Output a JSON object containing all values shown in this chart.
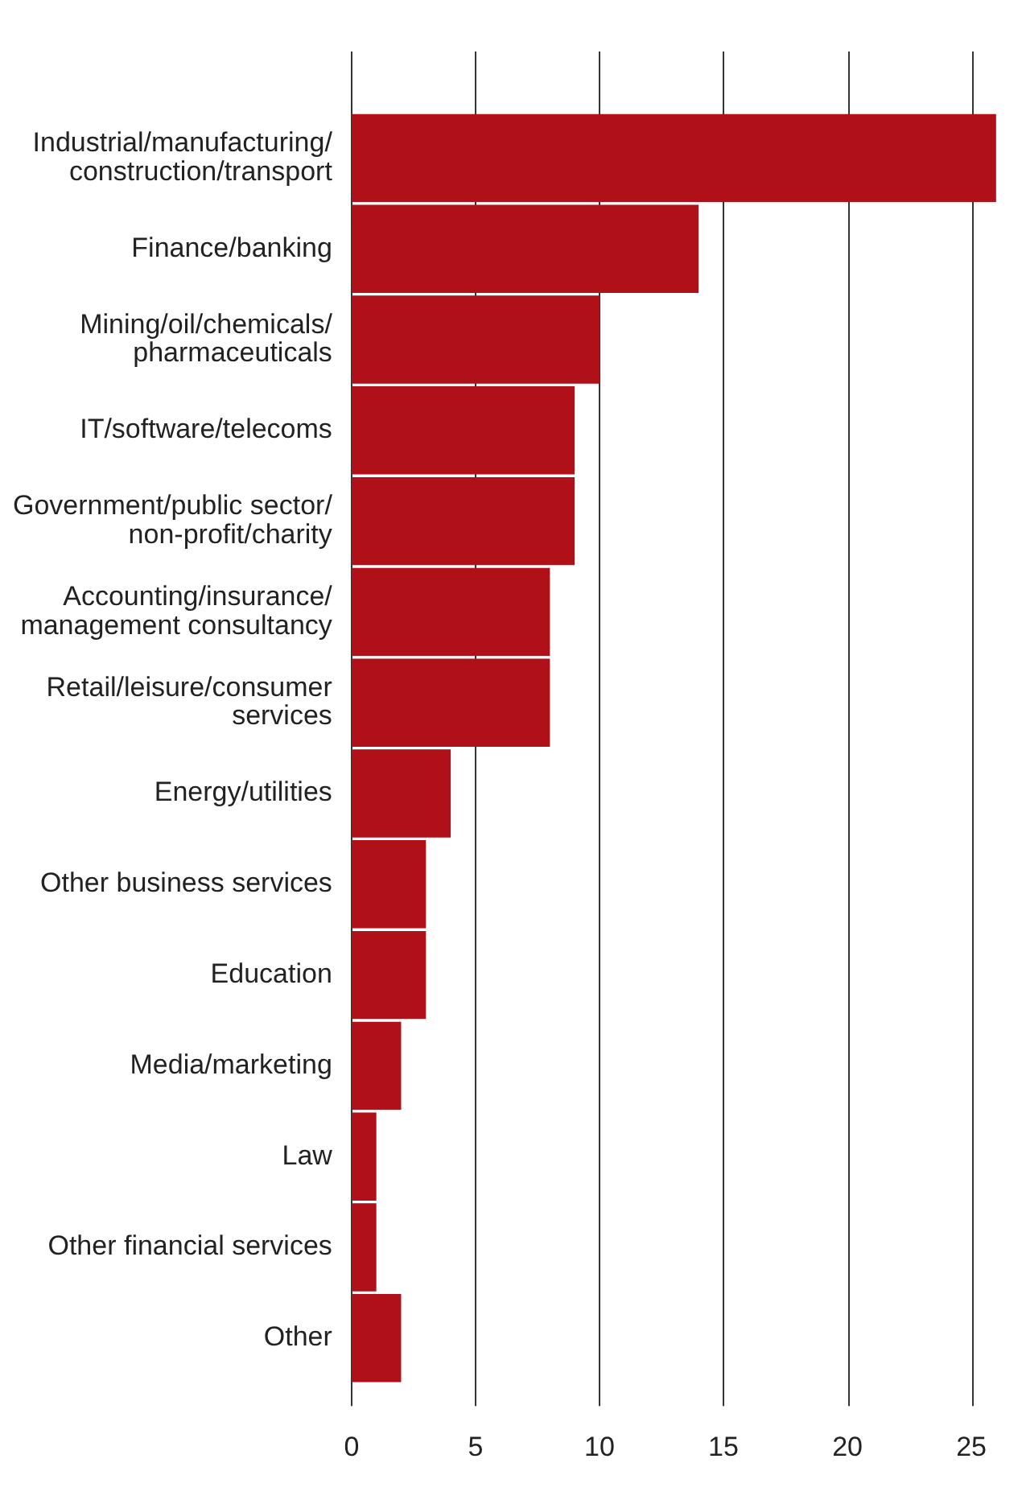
{
  "chart_data": {
    "type": "bar",
    "orientation": "horizontal",
    "categories": [
      "Industrial/manufacturing/construction/transport",
      "Finance/banking",
      "Mining/oil/chemicals/pharmaceuticals",
      "IT/software/telecoms",
      "Government/public sector/non-profit/charity",
      "Accounting/insurance/management consultancy",
      "Retail/leisure/consumer services",
      "Energy/utilities",
      "Other business services",
      "Education",
      "Media/marketing",
      "Law",
      "Other financial services",
      "Other"
    ],
    "values": [
      26,
      14,
      10,
      9,
      9,
      8,
      8,
      4,
      3,
      3,
      2,
      1,
      1,
      2
    ],
    "color": "#b01018",
    "xlim": [
      0,
      26
    ],
    "xticks": [
      0,
      5,
      10,
      15,
      20,
      25
    ],
    "grid": "x"
  }
}
